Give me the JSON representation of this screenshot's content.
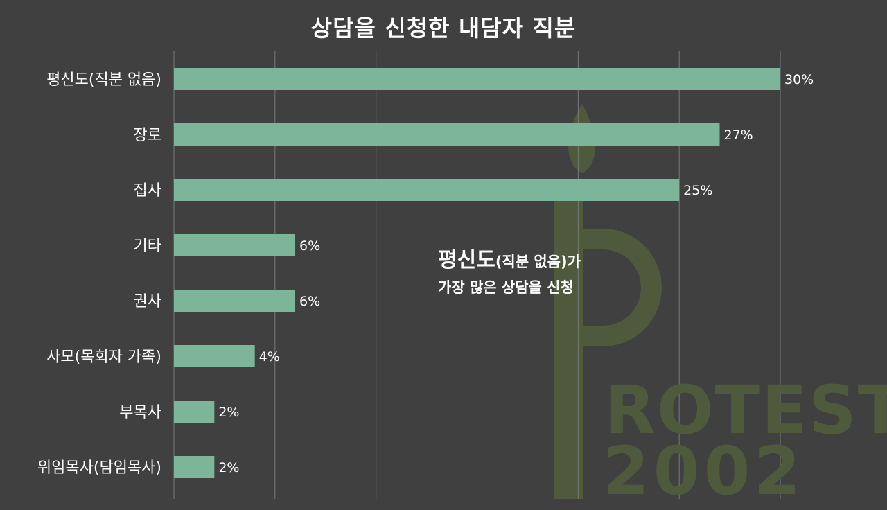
{
  "title": "상담을 신청한 내담자 직분",
  "annotation": {
    "line1_highlight": "평신도",
    "line1_rest": "(직분 없음)가",
    "line2": "가장 많은 상담을 신청"
  },
  "watermark": {
    "line1": "ROTEST",
    "line2": "2002"
  },
  "colors": {
    "background": "#404040",
    "bar": "#7db59a",
    "gridline": "#7a7a7a",
    "text": "#ffffff",
    "watermark": "#4f5a3c"
  },
  "chart_data": {
    "type": "bar",
    "orientation": "horizontal",
    "title": "상담을 신청한 내담자 직분",
    "categories": [
      "평신도(직분 없음)",
      "장로",
      "집사",
      "기타",
      "권사",
      "사모(목회자 가족)",
      "부목사",
      "위임목사(담임목사)"
    ],
    "values": [
      30,
      27,
      25,
      6,
      6,
      4,
      2,
      2
    ],
    "value_labels": [
      "30%",
      "27%",
      "25%",
      "6%",
      "6%",
      "4%",
      "2%",
      "2%"
    ],
    "xlim": [
      0,
      30
    ],
    "grid": true,
    "unit": "%"
  }
}
